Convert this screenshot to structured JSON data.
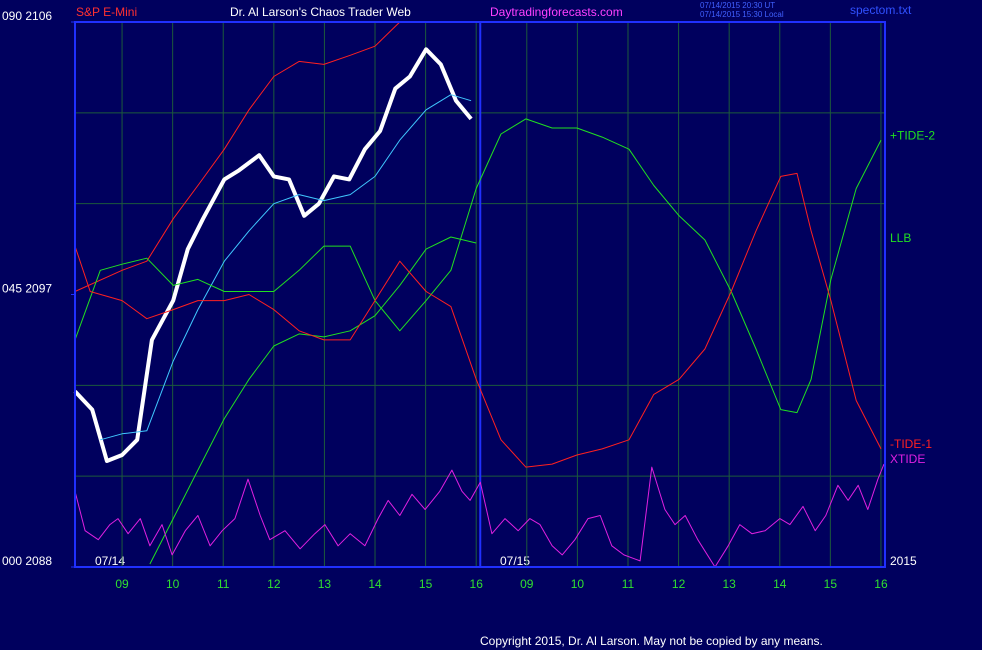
{
  "chart_data": {
    "type": "line",
    "title": "Dr. Al Larson's Chaos Trader Web",
    "instrument": "S&P E-Mini",
    "site": "Daytradingforecasts.com",
    "timestamps": [
      "07/14/2015 20:30 UT",
      "07/14/2015 15:30 Local"
    ],
    "file": "spectom.txt",
    "dates": [
      "07/14",
      "07/15",
      "2015"
    ],
    "copyright": "Copyright 2015, Dr. Al Larson. May not be copied by any means.",
    "xlim": [
      -0.93,
      15.08
    ],
    "xticks": [
      {
        "value": 0,
        "label": "09"
      },
      {
        "value": 1,
        "label": "10"
      },
      {
        "value": 2,
        "label": "11"
      },
      {
        "value": 3,
        "label": "12"
      },
      {
        "value": 4,
        "label": "13"
      },
      {
        "value": 5,
        "label": "14"
      },
      {
        "value": 6,
        "label": "15"
      },
      {
        "value": 7,
        "label": "16"
      },
      {
        "value": 8,
        "label": "09"
      },
      {
        "value": 9,
        "label": "10"
      },
      {
        "value": 10,
        "label": "11"
      },
      {
        "value": 11,
        "label": "12"
      },
      {
        "value": 12,
        "label": "13"
      },
      {
        "value": 13,
        "label": "14"
      },
      {
        "value": 14,
        "label": "15"
      },
      {
        "value": 15,
        "label": "16"
      }
    ],
    "xmarker": 7.08,
    "ylim": [
      2088,
      2106
    ],
    "yticks": [
      {
        "value": 2088,
        "label": "000  2088"
      },
      {
        "value": 2097,
        "label": "045  2097"
      },
      {
        "value": 2106,
        "label": "090  2106"
      }
    ],
    "ygrid": [
      2091,
      2094,
      2100,
      2103
    ],
    "grid": true,
    "series": [
      {
        "color": "#ff2020",
        "width": 1,
        "x": [
          -0.93,
          0,
          0.49,
          1.01,
          1.5,
          2.02,
          2.51,
          3.0,
          3.5,
          3.99,
          4.51,
          5.0,
          5.49
        ],
        "values": [
          2097.1,
          2097.8,
          2098.1,
          2099.5,
          2100.6,
          2101.8,
          2103.1,
          2104.2,
          2104.7,
          2104.6,
          2104.9,
          2105.2,
          2106
        ]
      },
      {
        "color": "#ffffff",
        "width": 4,
        "x": [
          -0.93,
          -0.59,
          -0.3,
          0,
          0.3,
          0.59,
          1.01,
          1.3,
          1.6,
          2.02,
          2.31,
          2.71,
          3.0,
          3.3,
          3.6,
          3.89,
          4.19,
          4.49,
          4.8,
          5.1,
          5.4,
          5.69,
          6.01,
          6.3,
          6.6,
          6.9
        ],
        "values": [
          2093.8,
          2093.2,
          2091.5,
          2091.7,
          2092.2,
          2095.5,
          2096.8,
          2098.5,
          2099.5,
          2100.8,
          2101.1,
          2101.6,
          2100.9,
          2100.8,
          2099.6,
          2100,
          2100.9,
          2100.8,
          2101.8,
          2102.4,
          2103.8,
          2104.2,
          2105.1,
          2104.6,
          2103.4,
          2102.8
        ]
      },
      {
        "color": "#40c8ff",
        "width": 1,
        "x": [
          -0.43,
          0,
          0.49,
          1.01,
          1.5,
          2.02,
          2.51,
          3.0,
          3.5,
          3.99,
          4.51,
          5.0,
          5.49,
          6.01,
          6.5,
          6.9
        ],
        "values": [
          2092.2,
          2092.4,
          2092.5,
          2094.8,
          2096.5,
          2098.1,
          2099.1,
          2100,
          2100.3,
          2100.1,
          2100.3,
          2100.9,
          2102.1,
          2103.1,
          2103.6,
          2103.4
        ]
      },
      {
        "name": "+TIDE-2",
        "color": "#20e020",
        "width": 1,
        "x": [
          -0.93,
          -0.43,
          0,
          0.49,
          1.01,
          1.5,
          2.02,
          2.51,
          3.0,
          3.5,
          3.99,
          4.51,
          5.0,
          5.49,
          6.01,
          6.5,
          7.0,
          7.49,
          7.98,
          8.5,
          8.99,
          9.49,
          10.02,
          10.51,
          11.01,
          11.52,
          12.04,
          12.53,
          13.02,
          13.34,
          13.62,
          14.01,
          14.51,
          15.0
        ],
        "values": [
          2095.5,
          2097.8,
          2098,
          2098.2,
          2097.3,
          2097.5,
          2097.1,
          2097.1,
          2097.1,
          2097.8,
          2098.6,
          2098.6,
          2096.8,
          2095.8,
          2096.8,
          2097.8,
          2100.5,
          2102.3,
          2102.8,
          2102.5,
          2102.5,
          2102.2,
          2101.8,
          2100.6,
          2099.6,
          2098.8,
          2097.1,
          2095.2,
          2093.2,
          2093.1,
          2094.2,
          2097.5,
          2100.5,
          2102.1
        ]
      },
      {
        "name": "LLB",
        "color": "#20e020",
        "width": 1,
        "x": [
          0.55,
          1.01,
          1.5,
          2.02,
          2.51,
          3.0,
          3.5,
          3.99,
          4.51,
          5.0,
          5.49,
          6.01,
          6.5,
          7.0
        ],
        "values": [
          2088.1,
          2089.6,
          2091.2,
          2092.9,
          2094.2,
          2095.3,
          2095.7,
          2095.6,
          2095.8,
          2096.3,
          2097.3,
          2098.5,
          2098.9,
          2098.7
        ]
      },
      {
        "name": "-TIDE-1",
        "color": "#ff2020",
        "width": 1,
        "x": [
          -0.93,
          -0.63,
          0,
          0.49,
          1.01,
          1.5,
          2.02,
          2.51,
          3.0,
          3.5,
          3.99,
          4.51,
          5.0,
          5.49,
          6.01,
          6.5,
          7.0,
          7.49,
          7.98,
          8.5,
          8.99,
          9.49,
          10.02,
          10.51,
          11.01,
          11.52,
          12.04,
          12.53,
          13.02,
          13.34,
          13.62,
          14.01,
          14.51,
          15.0
        ],
        "values": [
          2098.6,
          2097.1,
          2096.8,
          2096.2,
          2096.5,
          2096.8,
          2096.8,
          2097,
          2096.5,
          2095.8,
          2095.5,
          2095.5,
          2096.8,
          2098.1,
          2097.1,
          2096.6,
          2094.2,
          2092.2,
          2091.3,
          2091.4,
          2091.7,
          2091.9,
          2092.2,
          2093.7,
          2094.2,
          2095.2,
          2097.1,
          2099.1,
          2100.9,
          2101,
          2099.1,
          2096.8,
          2093.5,
          2091.9
        ]
      },
      {
        "name": "XTIDE",
        "color": "#e020e0",
        "width": 1,
        "x": [
          -0.93,
          -0.73,
          -0.47,
          -0.24,
          -0.08,
          0.12,
          0.36,
          0.55,
          0.79,
          0.99,
          1.25,
          1.5,
          1.74,
          1.98,
          2.23,
          2.49,
          2.73,
          2.92,
          3.22,
          3.52,
          3.81,
          4.01,
          4.27,
          4.51,
          4.8,
          5.06,
          5.26,
          5.49,
          5.73,
          5.99,
          6.28,
          6.52,
          6.72,
          6.88,
          7.08,
          7.31,
          7.57,
          7.83,
          8.06,
          8.26,
          8.5,
          8.7,
          8.95,
          9.21,
          9.45,
          9.68,
          9.92,
          10.24,
          10.47,
          10.73,
          10.93,
          11.13,
          11.38,
          11.72,
          11.98,
          12.21,
          12.45,
          12.71,
          13.0,
          13.2,
          13.46,
          13.7,
          13.91,
          14.15,
          14.35,
          14.55,
          14.74,
          14.94,
          15.06
        ],
        "values": [
          2090.5,
          2089.2,
          2088.9,
          2089.4,
          2089.6,
          2089.1,
          2089.6,
          2088.7,
          2089.4,
          2088.4,
          2089.2,
          2089.7,
          2088.7,
          2089.2,
          2089.6,
          2090.9,
          2089.7,
          2088.9,
          2089.2,
          2088.6,
          2089.1,
          2089.4,
          2088.7,
          2089.1,
          2088.7,
          2089.6,
          2090.2,
          2089.7,
          2090.4,
          2089.9,
          2090.5,
          2091.2,
          2090.5,
          2090.2,
          2090.8,
          2089.1,
          2089.6,
          2089.2,
          2089.6,
          2089.4,
          2088.7,
          2088.4,
          2088.9,
          2089.6,
          2089.7,
          2088.7,
          2088.4,
          2088.2,
          2091.3,
          2089.9,
          2089.4,
          2089.7,
          2088.9,
          2088,
          2088.7,
          2089.4,
          2089.1,
          2089.2,
          2089.6,
          2089.4,
          2090,
          2089.2,
          2089.7,
          2090.7,
          2090.2,
          2090.7,
          2089.9,
          2090.9,
          2091.4
        ]
      }
    ]
  }
}
